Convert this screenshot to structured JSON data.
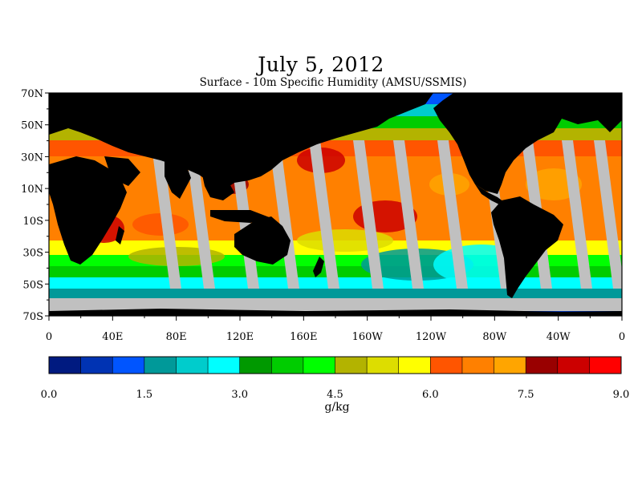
{
  "title": "July 5, 2012",
  "subtitle": "Surface - 10m Specific Humidity (AMSU/SSMIS)",
  "map": {
    "lat_range": [
      -70,
      70
    ],
    "lon_range": [
      0,
      360
    ],
    "lat_labels": [
      "70N",
      "50N",
      "30N",
      "10N",
      "10S",
      "30S",
      "50S",
      "70S"
    ],
    "lat_values": [
      70,
      50,
      30,
      10,
      -10,
      -30,
      -50,
      -70
    ],
    "lon_labels": [
      "0",
      "40E",
      "80E",
      "120E",
      "160E",
      "160W",
      "120W",
      "80W",
      "40W",
      "0"
    ],
    "lon_values": [
      0,
      40,
      80,
      120,
      160,
      200,
      240,
      280,
      320,
      360
    ],
    "land_color": "#000000",
    "missing_color": "#c0c0c0"
  },
  "colorbar": {
    "colors": [
      "#001a80",
      "#0033b3",
      "#0055ff",
      "#009999",
      "#00cccc",
      "#00ffff",
      "#009900",
      "#00cc00",
      "#00ff00",
      "#b3b300",
      "#dddd00",
      "#ffff00",
      "#ff5500",
      "#ff8000",
      "#ffa500",
      "#990000",
      "#cc0000",
      "#ff0000"
    ],
    "tick_labels": [
      "0.0",
      "1.5",
      "3.0",
      "4.5",
      "6.0",
      "7.5",
      "9.0"
    ],
    "tick_values": [
      0.0,
      1.5,
      3.0,
      4.5,
      6.0,
      7.5,
      9.0
    ],
    "min": 0.0,
    "max": 9.0,
    "units": "g/kg"
  }
}
